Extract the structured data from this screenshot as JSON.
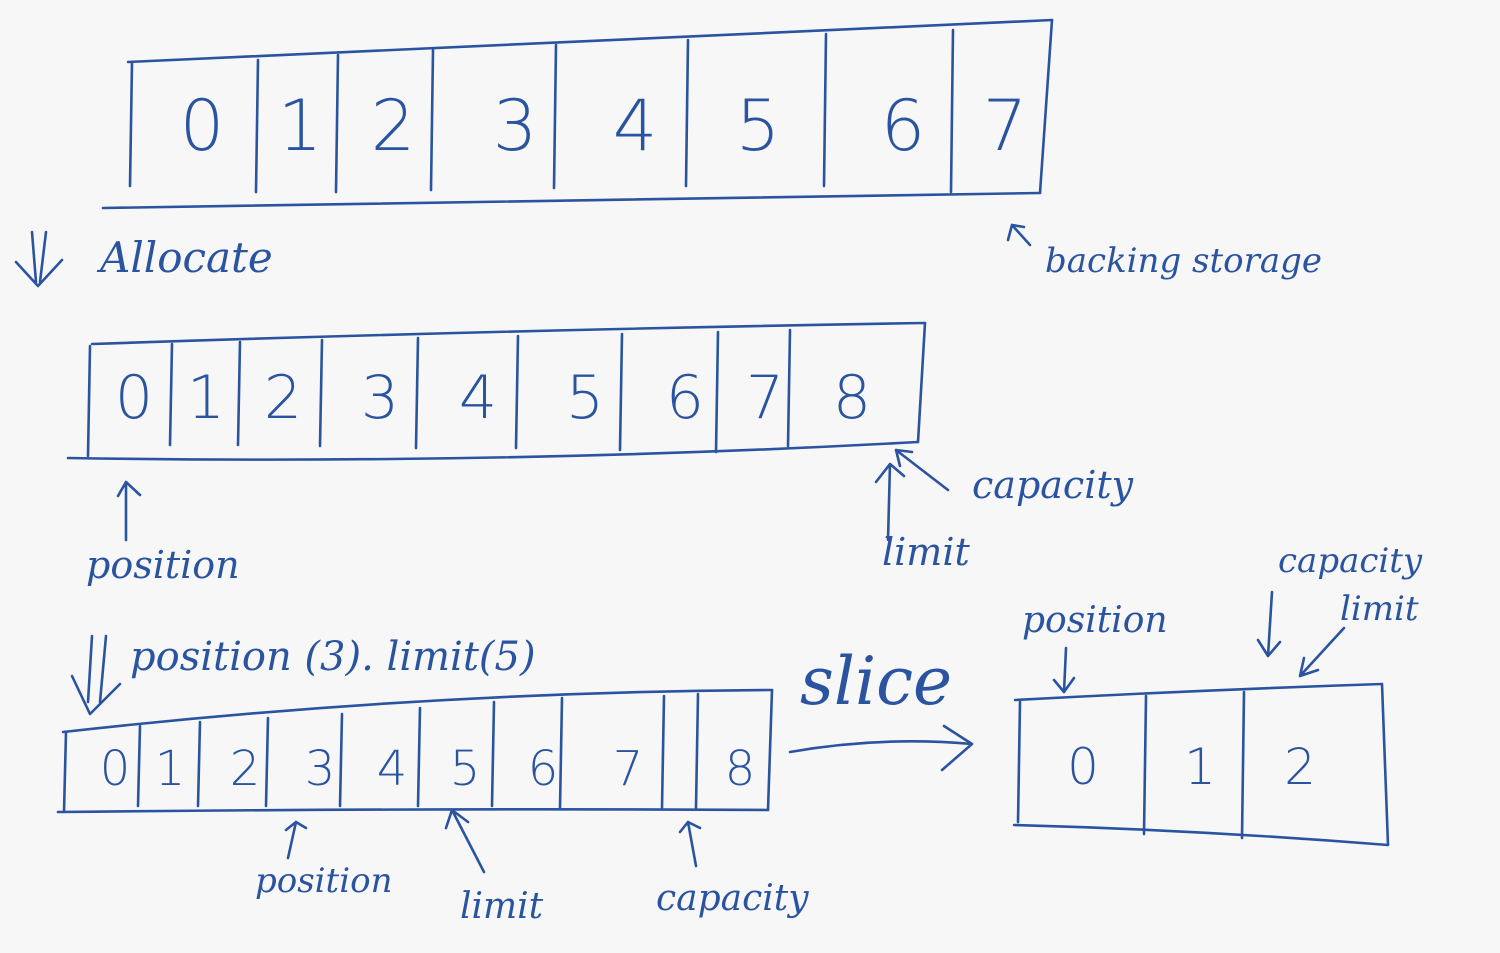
{
  "colors": {
    "background": "#f7f7f7",
    "ink": "#2a54a0"
  },
  "icons": {
    "allocate_arrow": "double-down-arrow-icon",
    "pointer_arrow": "up-arrow-icon",
    "slice_arrow": "right-arrow-icon"
  },
  "backing": {
    "cells": [
      "0",
      "1",
      "2",
      "3",
      "4",
      "5",
      "6",
      "7"
    ],
    "label": "backing storage"
  },
  "allocate": {
    "label": "Allocate",
    "cells": [
      "0",
      "1",
      "2",
      "3",
      "4",
      "5",
      "6",
      "7",
      "8"
    ],
    "position_label": "position",
    "limit_label": "limit",
    "capacity_label": "capacity"
  },
  "modified": {
    "label": "position (3). limit(5)",
    "cells": [
      "0",
      "1",
      "2",
      "3",
      "4",
      "5",
      "6",
      "7",
      "8"
    ],
    "position_label": "position",
    "limit_label": "limit",
    "capacity_label": "capacity"
  },
  "slice": {
    "label": "slice",
    "cells": [
      "0",
      "1",
      "2"
    ],
    "position_label": "position",
    "capacity_label": "capacity",
    "limit_label": "limit"
  }
}
